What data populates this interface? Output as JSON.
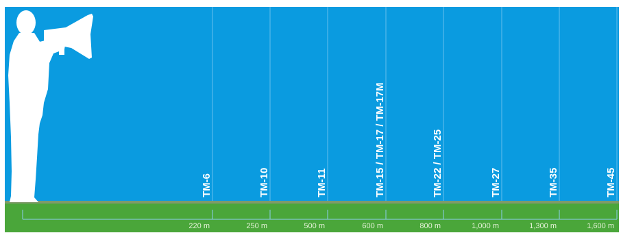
{
  "colors": {
    "sky": "#0a9be0",
    "ground_top": "#7f9a6a",
    "ground": "#4aa63a",
    "lines": "#8fcff0",
    "silhouette": "#ffffff",
    "label": "#ffffff",
    "dist_label": "#e6f2d8"
  },
  "icon": "person-with-megaphone-icon",
  "chart_data": {
    "type": "range-diagram",
    "items": [
      {
        "model": "TM-6",
        "range": "220 m"
      },
      {
        "model": "TM-10",
        "range": "250 m"
      },
      {
        "model": "TM-11",
        "range": "500 m"
      },
      {
        "model": "TM-15 / TM-17 / TM-17M",
        "range": "600 m"
      },
      {
        "model": "TM-22 / TM-25",
        "range": "800 m"
      },
      {
        "model": "TM-27",
        "range": "1,000 m"
      },
      {
        "model": "TM-35",
        "range": "1,300 m"
      },
      {
        "model": "TM-45",
        "range": "1,600 m"
      }
    ]
  }
}
